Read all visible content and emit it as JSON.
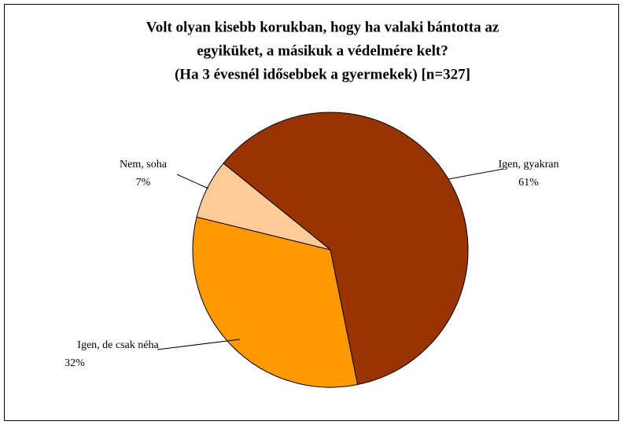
{
  "chart_data": {
    "type": "pie",
    "title": [
      "Volt olyan kisebb korukban, hogy ha valaki bántotta az",
      "egyiküket, a másikuk a védelmére kelt?",
      "(Ha 3 évesnél idősebbek a gyermekek) [n=327]"
    ],
    "categories": [
      "Igen, gyakran",
      "Igen, de csak néha",
      "Nem, soha"
    ],
    "values": [
      61,
      32,
      7
    ],
    "value_labels": [
      "61%",
      "32%",
      "7%"
    ],
    "colors": [
      "#993300",
      "#ff9900",
      "#ffcc99"
    ]
  }
}
